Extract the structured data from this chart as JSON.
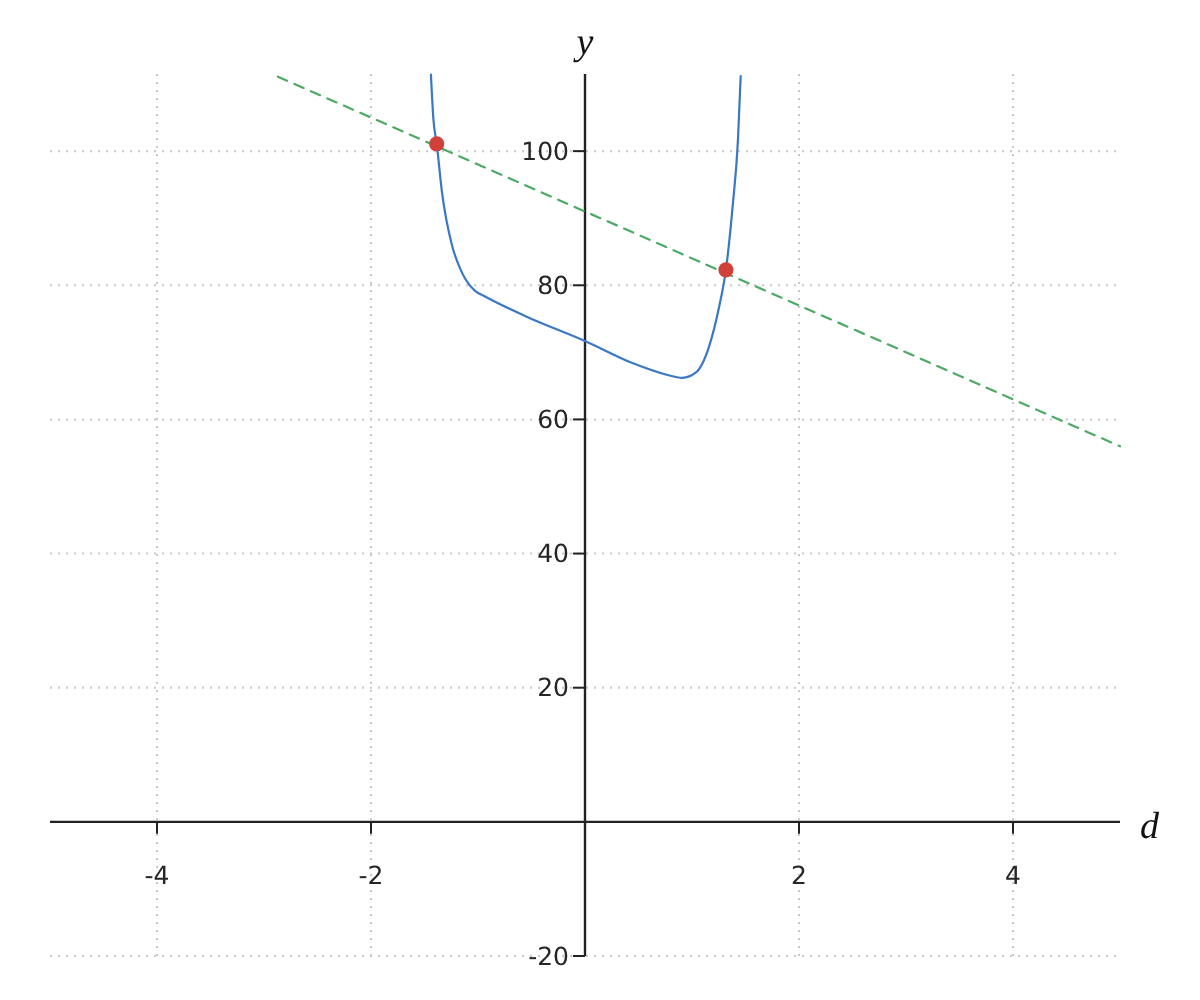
{
  "chart_data": {
    "type": "line",
    "xlabel": "d",
    "ylabel": "y",
    "xlim": [
      -5,
      5
    ],
    "ylim": [
      -20,
      111.5
    ],
    "xticks": [
      -4,
      -2,
      2,
      4
    ],
    "yticks": [
      -20,
      20,
      40,
      60,
      80,
      100
    ],
    "grid": true,
    "series": [
      {
        "color": "#3a78c4",
        "line_style": "solid",
        "marker": "none",
        "x": [
          -1.44,
          -1.417,
          -1.386,
          -1.336,
          -1.242,
          -1.17,
          -1.117,
          -1.03,
          -0.93,
          -0.556,
          0,
          0.443,
          0.755,
          0.91,
          1.037,
          1.16,
          1.255,
          1.317,
          1.38,
          1.43,
          1.455
        ],
        "values": [
          111.4,
          104.8,
          101.1,
          93.8,
          85.9,
          82.6,
          80.9,
          79.2,
          78.3,
          75.4,
          71.7,
          68.4,
          66.7,
          66.2,
          67.0,
          70.9,
          76.9,
          82.3,
          91.8,
          101.8,
          111.2
        ]
      },
      {
        "color": "#4caa64",
        "line_style": "dashed",
        "marker": "none",
        "x": [
          -2.87,
          5
        ],
        "values": [
          111.1,
          56
        ]
      },
      {
        "type": "scatter",
        "color": "#d0413a",
        "marker": "circle",
        "x": [
          -1.386,
          1.317
        ],
        "values": [
          101.1,
          82.3
        ]
      }
    ]
  }
}
